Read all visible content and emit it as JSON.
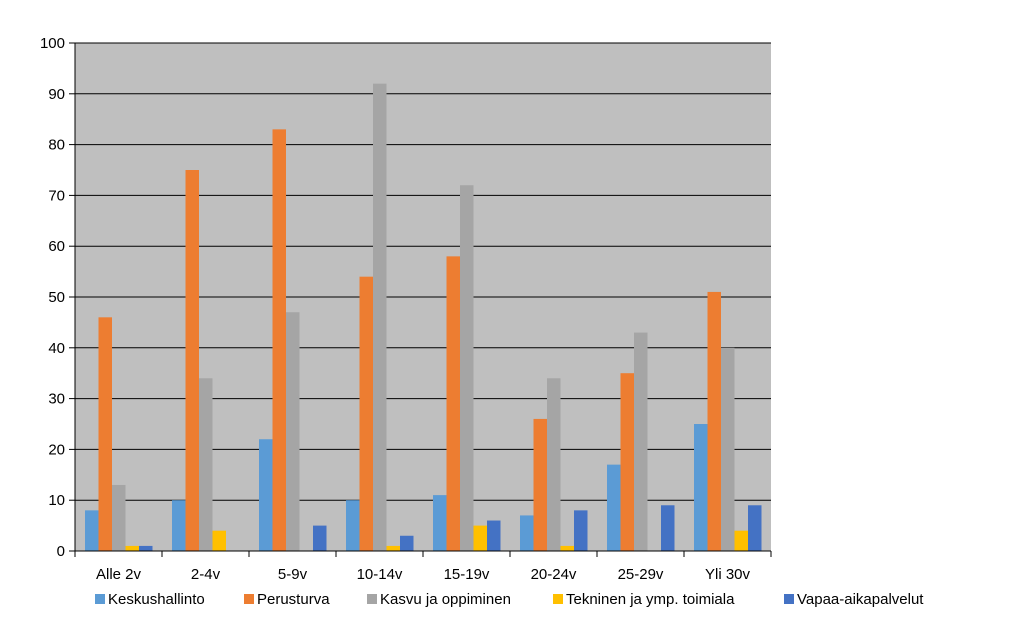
{
  "chart_data": {
    "type": "bar",
    "categories": [
      "Alle 2v",
      "2-4v",
      "5-9v",
      "10-14v",
      "15-19v",
      "20-24v",
      "25-29v",
      "Yli 30v"
    ],
    "series": [
      {
        "name": "Keskushallinto",
        "color": "#5b9bd5",
        "values": [
          8,
          10,
          22,
          10,
          11,
          7,
          17,
          25
        ]
      },
      {
        "name": "Perusturva",
        "color": "#ed7d31",
        "values": [
          46,
          75,
          83,
          54,
          58,
          26,
          35,
          51
        ]
      },
      {
        "name": "Kasvu ja oppiminen",
        "color": "#a5a5a5",
        "values": [
          13,
          34,
          47,
          92,
          72,
          34,
          43,
          40
        ]
      },
      {
        "name": "Tekninen ja ymp. toimiala",
        "color": "#ffc000",
        "values": [
          1,
          4,
          0,
          1,
          5,
          1,
          0,
          4
        ]
      },
      {
        "name": "Vapaa-aikapalvelut",
        "color": "#4472c4",
        "values": [
          1,
          0,
          5,
          3,
          6,
          8,
          9,
          9
        ]
      }
    ],
    "yticks": [
      "0",
      "10",
      "20",
      "30",
      "40",
      "50",
      "60",
      "70",
      "80",
      "90",
      "100"
    ],
    "ylim": [
      0,
      100
    ],
    "grid": true,
    "plot_background": "#bfbfbf",
    "legend_position": "bottom"
  }
}
